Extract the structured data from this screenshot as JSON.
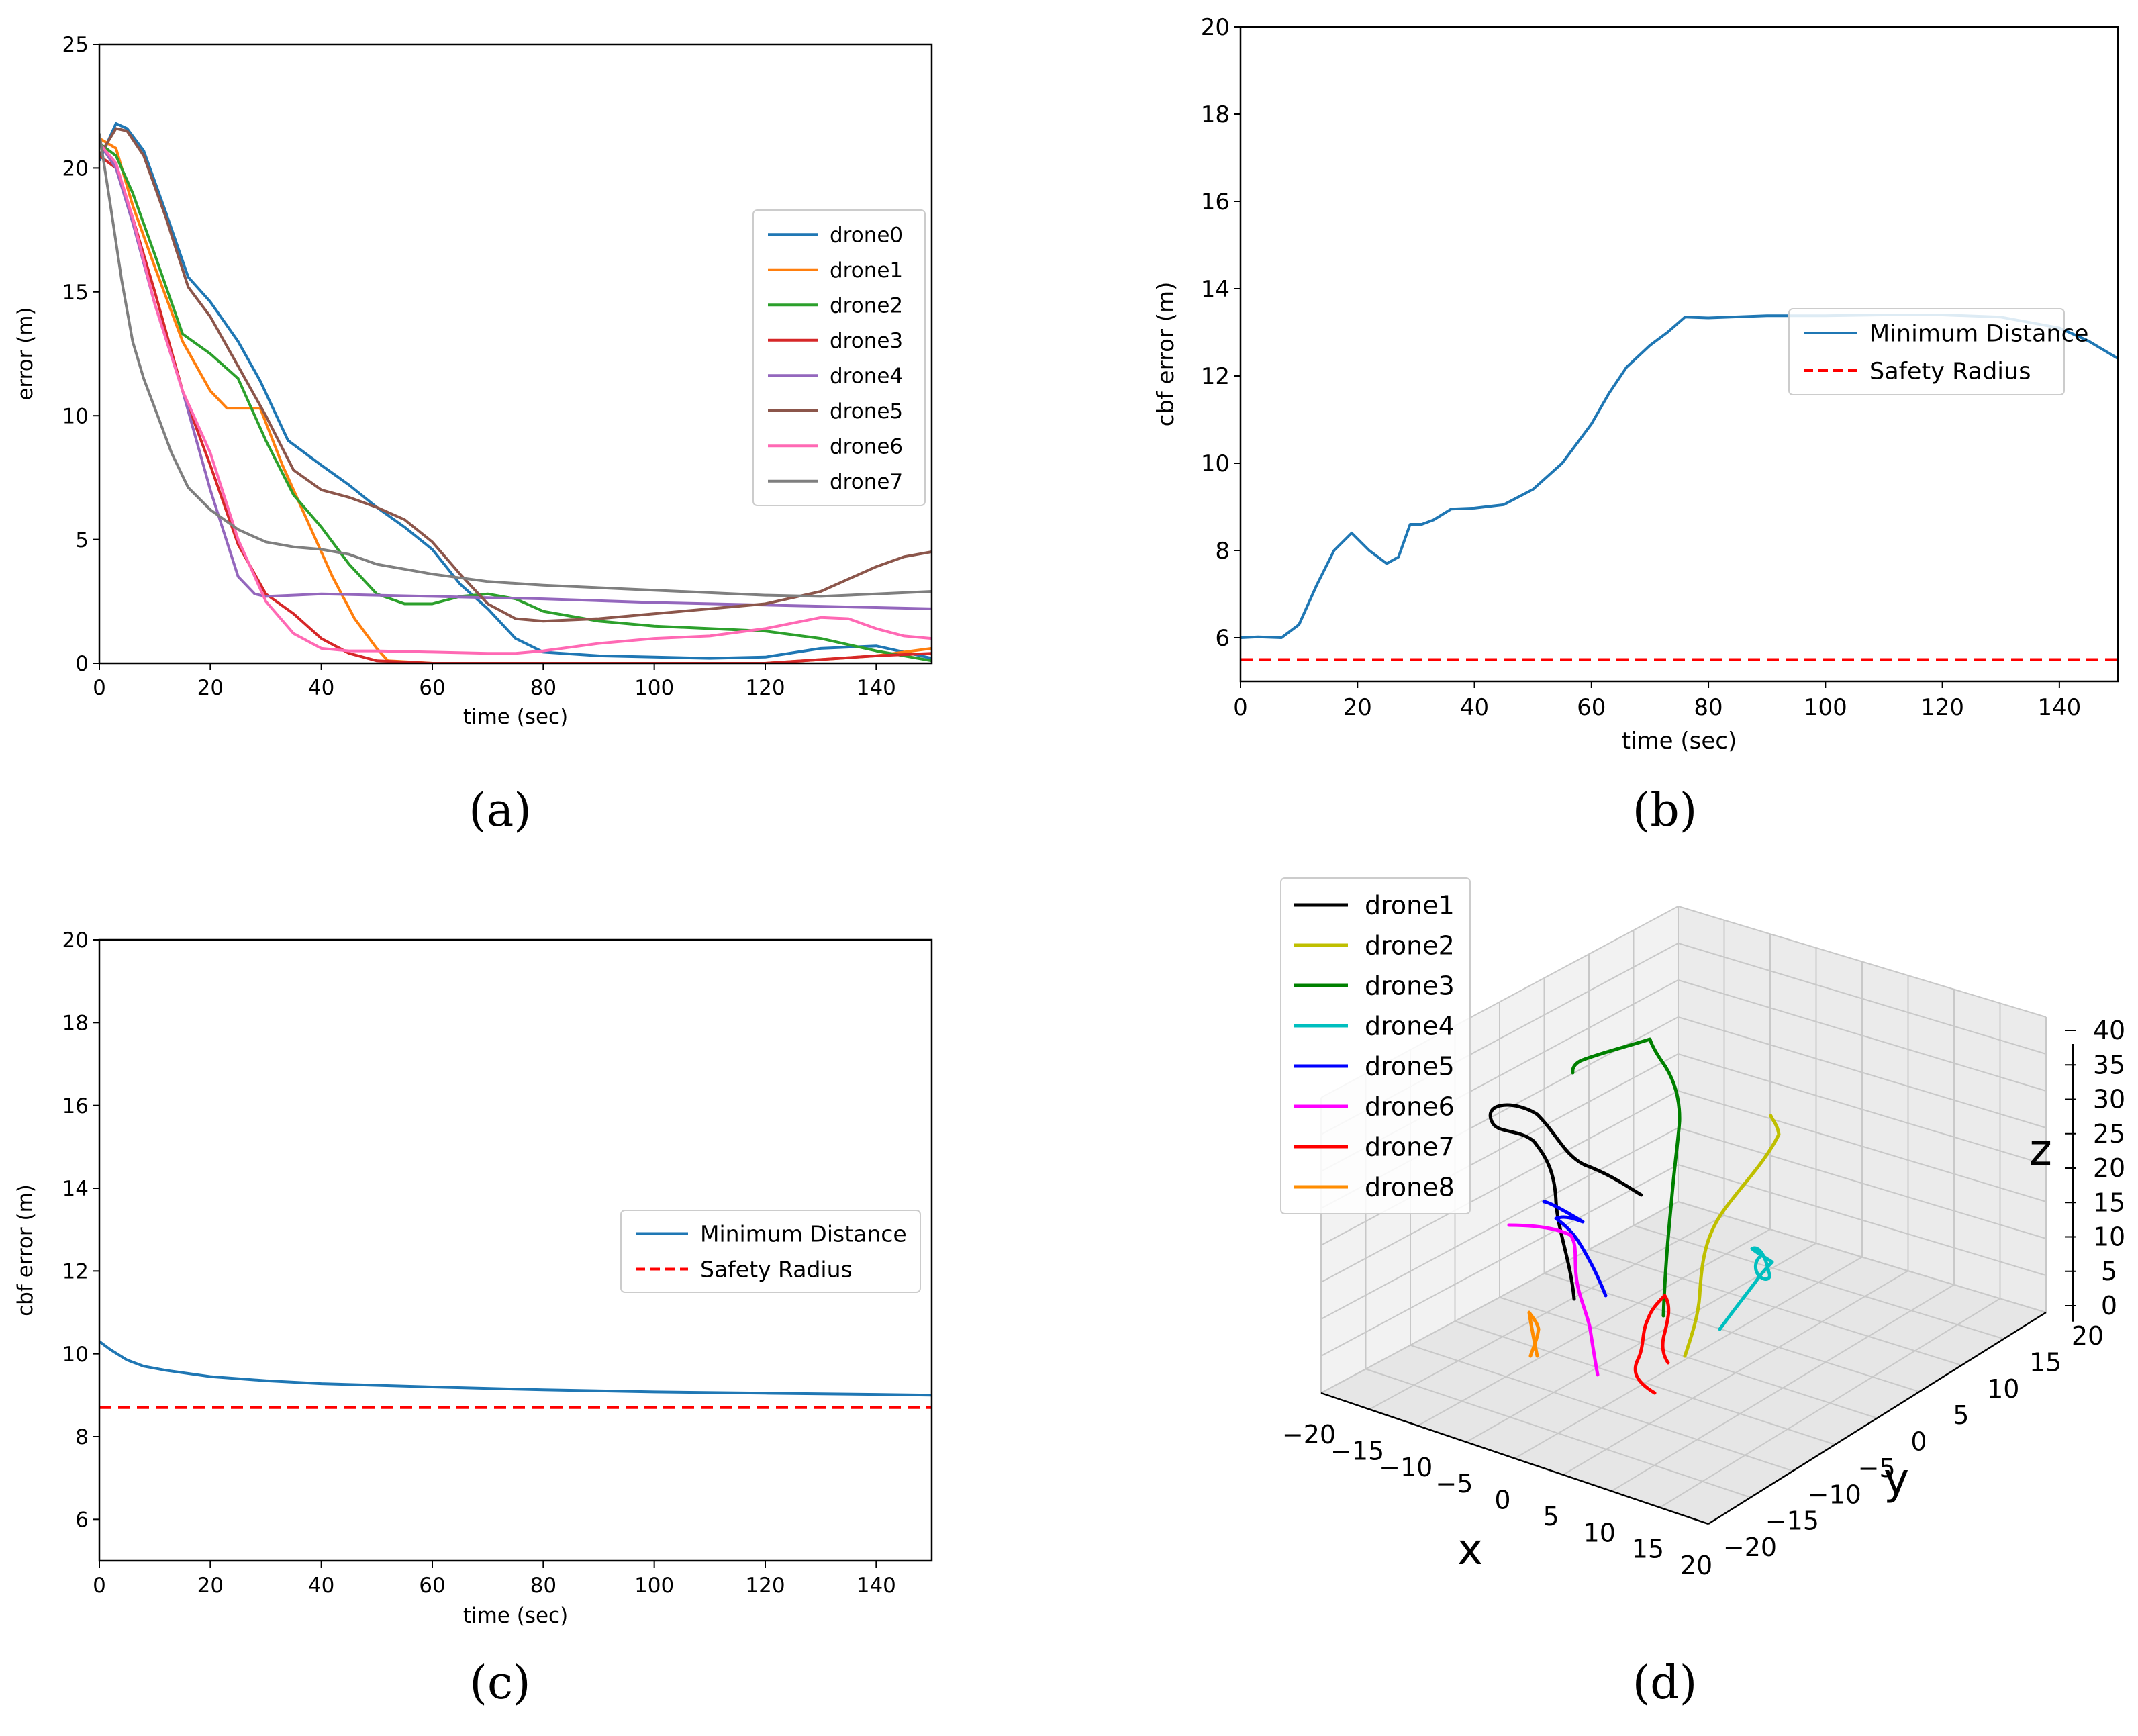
{
  "chart_data": [
    {
      "type": "line",
      "panel_label": "(a)",
      "xlabel": "time (sec)",
      "ylabel": "error (m)",
      "xlim": [
        0,
        150
      ],
      "ylim": [
        0,
        25
      ],
      "xticks": [
        0,
        20,
        40,
        60,
        80,
        100,
        120,
        140
      ],
      "yticks": [
        0,
        5,
        10,
        15,
        20,
        25
      ],
      "legend_position": "center-right",
      "series": [
        {
          "name": "drone0",
          "color": "#1f77b4",
          "x": [
            0,
            3,
            5,
            8,
            12,
            16,
            20,
            25,
            29,
            34,
            40,
            45,
            50,
            55,
            60,
            65,
            70,
            75,
            80,
            90,
            100,
            110,
            120,
            130,
            140,
            150
          ],
          "y": [
            20.3,
            21.8,
            21.6,
            20.7,
            18.2,
            15.6,
            14.6,
            13.0,
            11.4,
            9.0,
            8.0,
            7.2,
            6.3,
            5.5,
            4.6,
            3.2,
            2.2,
            1.0,
            0.45,
            0.3,
            0.25,
            0.2,
            0.25,
            0.6,
            0.7,
            0.2
          ]
        },
        {
          "name": "drone1",
          "color": "#ff7f0e",
          "x": [
            0,
            3,
            6,
            10,
            15,
            20,
            23,
            26,
            29,
            33,
            38,
            42,
            46,
            50,
            52,
            60,
            80,
            100,
            120,
            140,
            150
          ],
          "y": [
            21.2,
            20.8,
            18.5,
            16.0,
            13.0,
            11.0,
            10.3,
            10.3,
            10.3,
            8.0,
            5.5,
            3.5,
            1.8,
            0.6,
            0.1,
            0,
            0,
            0,
            0,
            0.3,
            0.6
          ]
        },
        {
          "name": "drone2",
          "color": "#2ca02c",
          "x": [
            0,
            3,
            6,
            10,
            15,
            20,
            25,
            30,
            35,
            40,
            45,
            50,
            55,
            60,
            65,
            70,
            75,
            80,
            90,
            100,
            110,
            120,
            130,
            140,
            150
          ],
          "y": [
            21.0,
            20.5,
            19.0,
            16.5,
            13.3,
            12.5,
            11.5,
            9.0,
            6.8,
            5.5,
            4.0,
            2.8,
            2.4,
            2.4,
            2.7,
            2.8,
            2.6,
            2.1,
            1.7,
            1.5,
            1.4,
            1.3,
            1.0,
            0.5,
            0.1
          ]
        },
        {
          "name": "drone3",
          "color": "#d62728",
          "x": [
            0,
            3,
            6,
            10,
            15,
            20,
            25,
            30,
            35,
            40,
            45,
            50,
            60,
            80,
            100,
            120,
            140,
            150
          ],
          "y": [
            20.5,
            20.0,
            18.0,
            15.0,
            11.0,
            8.0,
            4.8,
            2.8,
            2.0,
            1.0,
            0.4,
            0.1,
            0,
            0,
            0,
            0,
            0.3,
            0.4
          ]
        },
        {
          "name": "drone4",
          "color": "#9467bd",
          "x": [
            0,
            3,
            6,
            10,
            15,
            20,
            25,
            28,
            30,
            35,
            40,
            50,
            60,
            80,
            100,
            120,
            140,
            150
          ],
          "y": [
            21.0,
            20.0,
            17.8,
            14.5,
            11.0,
            7.0,
            3.5,
            2.8,
            2.7,
            2.75,
            2.8,
            2.75,
            2.7,
            2.6,
            2.45,
            2.35,
            2.25,
            2.2
          ]
        },
        {
          "name": "drone5",
          "color": "#8c564b",
          "x": [
            0,
            3,
            5,
            8,
            12,
            16,
            20,
            25,
            30,
            35,
            40,
            45,
            50,
            55,
            60,
            65,
            70,
            75,
            80,
            90,
            100,
            110,
            120,
            130,
            135,
            140,
            145,
            150
          ],
          "y": [
            20.5,
            21.6,
            21.5,
            20.5,
            18.0,
            15.2,
            14.0,
            12.0,
            10.0,
            7.8,
            7.0,
            6.7,
            6.3,
            5.8,
            4.9,
            3.6,
            2.4,
            1.8,
            1.7,
            1.8,
            2.0,
            2.2,
            2.4,
            2.9,
            3.4,
            3.9,
            4.3,
            4.5
          ]
        },
        {
          "name": "drone6",
          "color": "#ff69b4",
          "x": [
            0,
            3,
            6,
            10,
            15,
            20,
            25,
            30,
            35,
            40,
            45,
            50,
            60,
            70,
            75,
            80,
            90,
            100,
            110,
            120,
            130,
            135,
            140,
            145,
            150
          ],
          "y": [
            21.0,
            20.2,
            18.0,
            14.5,
            11.0,
            8.5,
            5.0,
            2.5,
            1.2,
            0.6,
            0.5,
            0.5,
            0.45,
            0.4,
            0.4,
            0.5,
            0.8,
            1.0,
            1.1,
            1.4,
            1.85,
            1.8,
            1.4,
            1.1,
            1.0
          ]
        },
        {
          "name": "drone7",
          "color": "#7f7f7f",
          "x": [
            0,
            2,
            4,
            6,
            8,
            10,
            13,
            16,
            20,
            25,
            30,
            35,
            40,
            45,
            50,
            60,
            70,
            80,
            90,
            100,
            110,
            120,
            130,
            140,
            150
          ],
          "y": [
            21.4,
            18.5,
            15.5,
            13.0,
            11.5,
            10.3,
            8.5,
            7.1,
            6.2,
            5.4,
            4.9,
            4.7,
            4.6,
            4.4,
            4.0,
            3.6,
            3.3,
            3.15,
            3.05,
            2.95,
            2.85,
            2.75,
            2.7,
            2.8,
            2.9
          ]
        }
      ]
    },
    {
      "type": "line",
      "panel_label": "(b)",
      "xlabel": "time (sec)",
      "ylabel": "cbf error (m)",
      "xlim": [
        0,
        150
      ],
      "ylim": [
        5,
        20
      ],
      "xticks": [
        0,
        20,
        40,
        60,
        80,
        100,
        120,
        140
      ],
      "yticks": [
        6,
        8,
        10,
        12,
        14,
        16,
        18,
        20
      ],
      "legend_position": "upper-right",
      "series": [
        {
          "name": "Minimum Distance",
          "color": "#1f77b4",
          "style": "solid",
          "x": [
            0,
            3,
            7,
            10,
            13,
            16,
            19,
            22,
            25,
            27,
            29,
            31,
            33,
            36,
            40,
            45,
            50,
            55,
            60,
            63,
            66,
            70,
            73,
            76,
            80,
            90,
            100,
            110,
            120,
            130,
            140,
            145,
            150
          ],
          "y": [
            6.0,
            6.02,
            6.0,
            6.3,
            7.2,
            8.0,
            8.4,
            8.0,
            7.7,
            7.85,
            8.6,
            8.6,
            8.7,
            8.95,
            8.97,
            9.05,
            9.4,
            10.0,
            10.9,
            11.6,
            12.2,
            12.7,
            13.0,
            13.35,
            13.33,
            13.38,
            13.38,
            13.4,
            13.4,
            13.35,
            13.1,
            12.8,
            12.4
          ]
        },
        {
          "name": "Safety Radius",
          "color": "#ff0000",
          "style": "dashed",
          "x": [
            0,
            150
          ],
          "y": [
            5.5,
            5.5
          ]
        }
      ]
    },
    {
      "type": "line",
      "panel_label": "(c)",
      "xlabel": "time (sec)",
      "ylabel": "cbf error (m)",
      "xlim": [
        0,
        150
      ],
      "ylim": [
        5,
        20
      ],
      "xticks": [
        0,
        20,
        40,
        60,
        80,
        100,
        120,
        140
      ],
      "yticks": [
        6,
        8,
        10,
        12,
        14,
        16,
        18,
        20
      ],
      "legend_position": "center-right",
      "series": [
        {
          "name": "Minimum Distance",
          "color": "#1f77b4",
          "style": "solid",
          "x": [
            0,
            2,
            5,
            8,
            12,
            20,
            30,
            40,
            60,
            80,
            100,
            120,
            140,
            150
          ],
          "y": [
            10.3,
            10.1,
            9.85,
            9.7,
            9.6,
            9.45,
            9.35,
            9.28,
            9.2,
            9.13,
            9.08,
            9.05,
            9.02,
            9.0
          ]
        },
        {
          "name": "Safety Radius",
          "color": "#ff0000",
          "style": "dashed",
          "x": [
            0,
            150
          ],
          "y": [
            8.7,
            8.7
          ]
        }
      ]
    },
    {
      "type": "line3d",
      "panel_label": "(d)",
      "xlabel": "x",
      "ylabel": "y",
      "zlabel": "z",
      "xlim": [
        -20,
        20
      ],
      "ylim": [
        -20,
        20
      ],
      "zlim": [
        0,
        40
      ],
      "xtick_labels": [
        "−20",
        "−15",
        "−10",
        "−5",
        "0",
        "5",
        "10",
        "15",
        "20"
      ],
      "ytick_labels": [
        "−20",
        "−15",
        "−10",
        "−5",
        "0",
        "5",
        "10",
        "15",
        "20"
      ],
      "ztick_labels": [
        "0",
        "5",
        "10",
        "15",
        "20",
        "25",
        "30",
        "35",
        "40"
      ],
      "legend_position": "upper-left",
      "series": [
        {
          "name": "drone1",
          "color": "#000000"
        },
        {
          "name": "drone2",
          "color": "#bfbf00"
        },
        {
          "name": "drone3",
          "color": "#008000"
        },
        {
          "name": "drone4",
          "color": "#00bfbf"
        },
        {
          "name": "drone5",
          "color": "#0000ff"
        },
        {
          "name": "drone6",
          "color": "#ff00ff"
        },
        {
          "name": "drone7",
          "color": "#ff0000"
        },
        {
          "name": "drone8",
          "color": "#ff8c00"
        }
      ]
    }
  ]
}
